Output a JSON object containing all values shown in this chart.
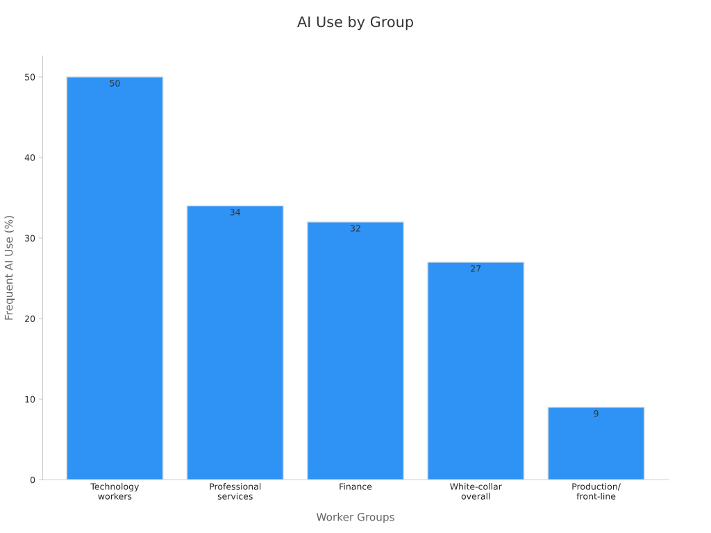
{
  "chart_data": {
    "type": "bar",
    "title": "AI Use by Group",
    "xlabel": "Worker Groups",
    "ylabel": "Frequent AI Use (%)",
    "categories": [
      "Technology\nworkers",
      "Professional\nservices",
      "Finance",
      "White-collar\noverall",
      "Production/\nfront-line"
    ],
    "values": [
      50,
      34,
      32,
      27,
      9
    ],
    "color": "#2e93f5",
    "ylim": [
      0,
      52.6
    ],
    "yticks": [
      0,
      10,
      20,
      30,
      40,
      50
    ],
    "data_labels": true,
    "grid": false,
    "legend": false
  }
}
